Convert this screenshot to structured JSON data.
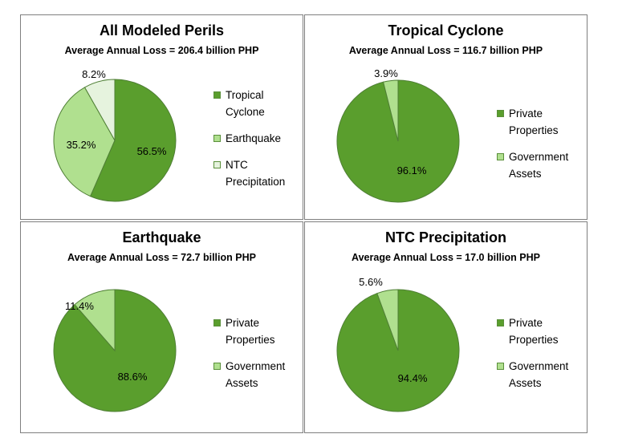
{
  "colors": {
    "dark_green": "#5a9e2d",
    "light_green": "#b0e08f",
    "pale_green": "#e6f3de",
    "border": "#7f7f7f"
  },
  "chart_data": [
    {
      "type": "pie",
      "title": "All Modeled Perils",
      "subtitle": "Average Annual Loss = 206.4 billion PHP",
      "slices": [
        {
          "label": "Tropical Cyclone",
          "value": 56.5,
          "display": "56.5%",
          "color": "#5a9e2d"
        },
        {
          "label": "Earthquake",
          "value": 35.2,
          "display": "35.2%",
          "color": "#b0e08f"
        },
        {
          "label": "NTC Precipitation",
          "value": 8.2,
          "display": "8.2%",
          "color": "#e6f3de"
        }
      ],
      "legend_position": "right"
    },
    {
      "type": "pie",
      "title": "Tropical Cyclone",
      "subtitle": "Average Annual Loss = 116.7 billion PHP",
      "slices": [
        {
          "label": "Private Properties",
          "value": 96.1,
          "display": "96.1%",
          "color": "#5a9e2d"
        },
        {
          "label": "Government Assets",
          "value": 3.9,
          "display": "3.9%",
          "color": "#b0e08f"
        }
      ],
      "legend_position": "right"
    },
    {
      "type": "pie",
      "title": "Earthquake",
      "subtitle": "Average Annual Loss = 72.7 billion PHP",
      "slices": [
        {
          "label": "Private Properties",
          "value": 88.6,
          "display": "88.6%",
          "color": "#5a9e2d"
        },
        {
          "label": "Government Assets",
          "value": 11.4,
          "display": "11.4%",
          "color": "#b0e08f"
        }
      ],
      "legend_position": "right"
    },
    {
      "type": "pie",
      "title": "NTC Precipitation",
      "subtitle": "Average Annual Loss = 17.0 billion PHP",
      "slices": [
        {
          "label": "Private Properties",
          "value": 94.4,
          "display": "94.4%",
          "color": "#5a9e2d"
        },
        {
          "label": "Government Assets",
          "value": 5.6,
          "display": "5.6%",
          "color": "#b0e08f"
        }
      ],
      "legend_position": "right"
    }
  ]
}
